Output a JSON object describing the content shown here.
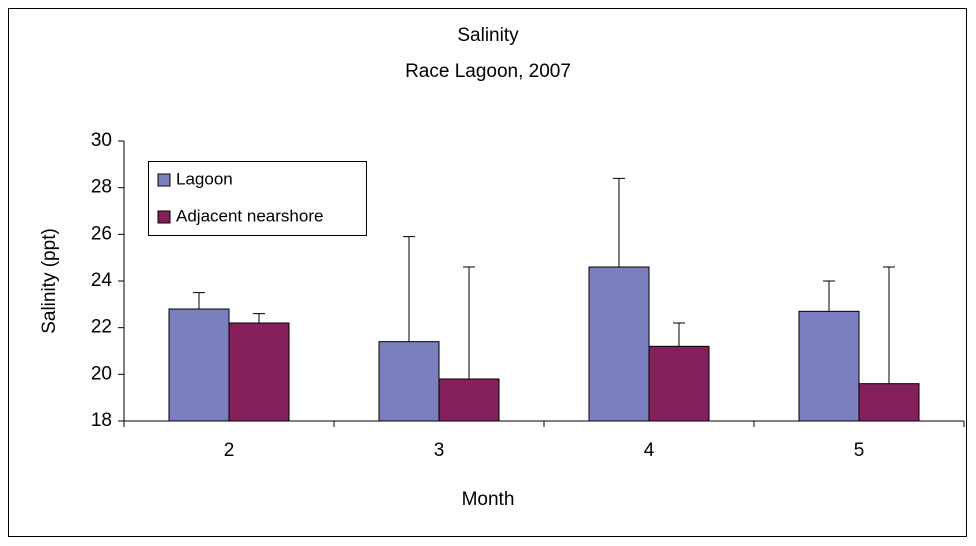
{
  "chart_data": {
    "type": "bar",
    "title": "Salinity",
    "subtitle": "Race Lagoon, 2007",
    "x_label": "Month",
    "y_label": "Salinity (ppt)",
    "categories": [
      "2",
      "3",
      "4",
      "5"
    ],
    "series": [
      {
        "name": "Lagoon",
        "color": "#7b7fc0",
        "values": [
          22.8,
          21.4,
          24.6,
          22.7
        ],
        "errors": [
          0.7,
          4.5,
          3.8,
          1.3
        ]
      },
      {
        "name": "Adjacent nearshore",
        "color": "#841f5a",
        "values": [
          22.2,
          19.8,
          21.2,
          19.6
        ],
        "errors": [
          0.4,
          4.8,
          1.0,
          5.0
        ]
      }
    ],
    "ylim": [
      18,
      30
    ],
    "yticks": [
      18,
      20,
      22,
      24,
      26,
      28,
      30
    ],
    "grid": false,
    "legend": "upper left"
  }
}
